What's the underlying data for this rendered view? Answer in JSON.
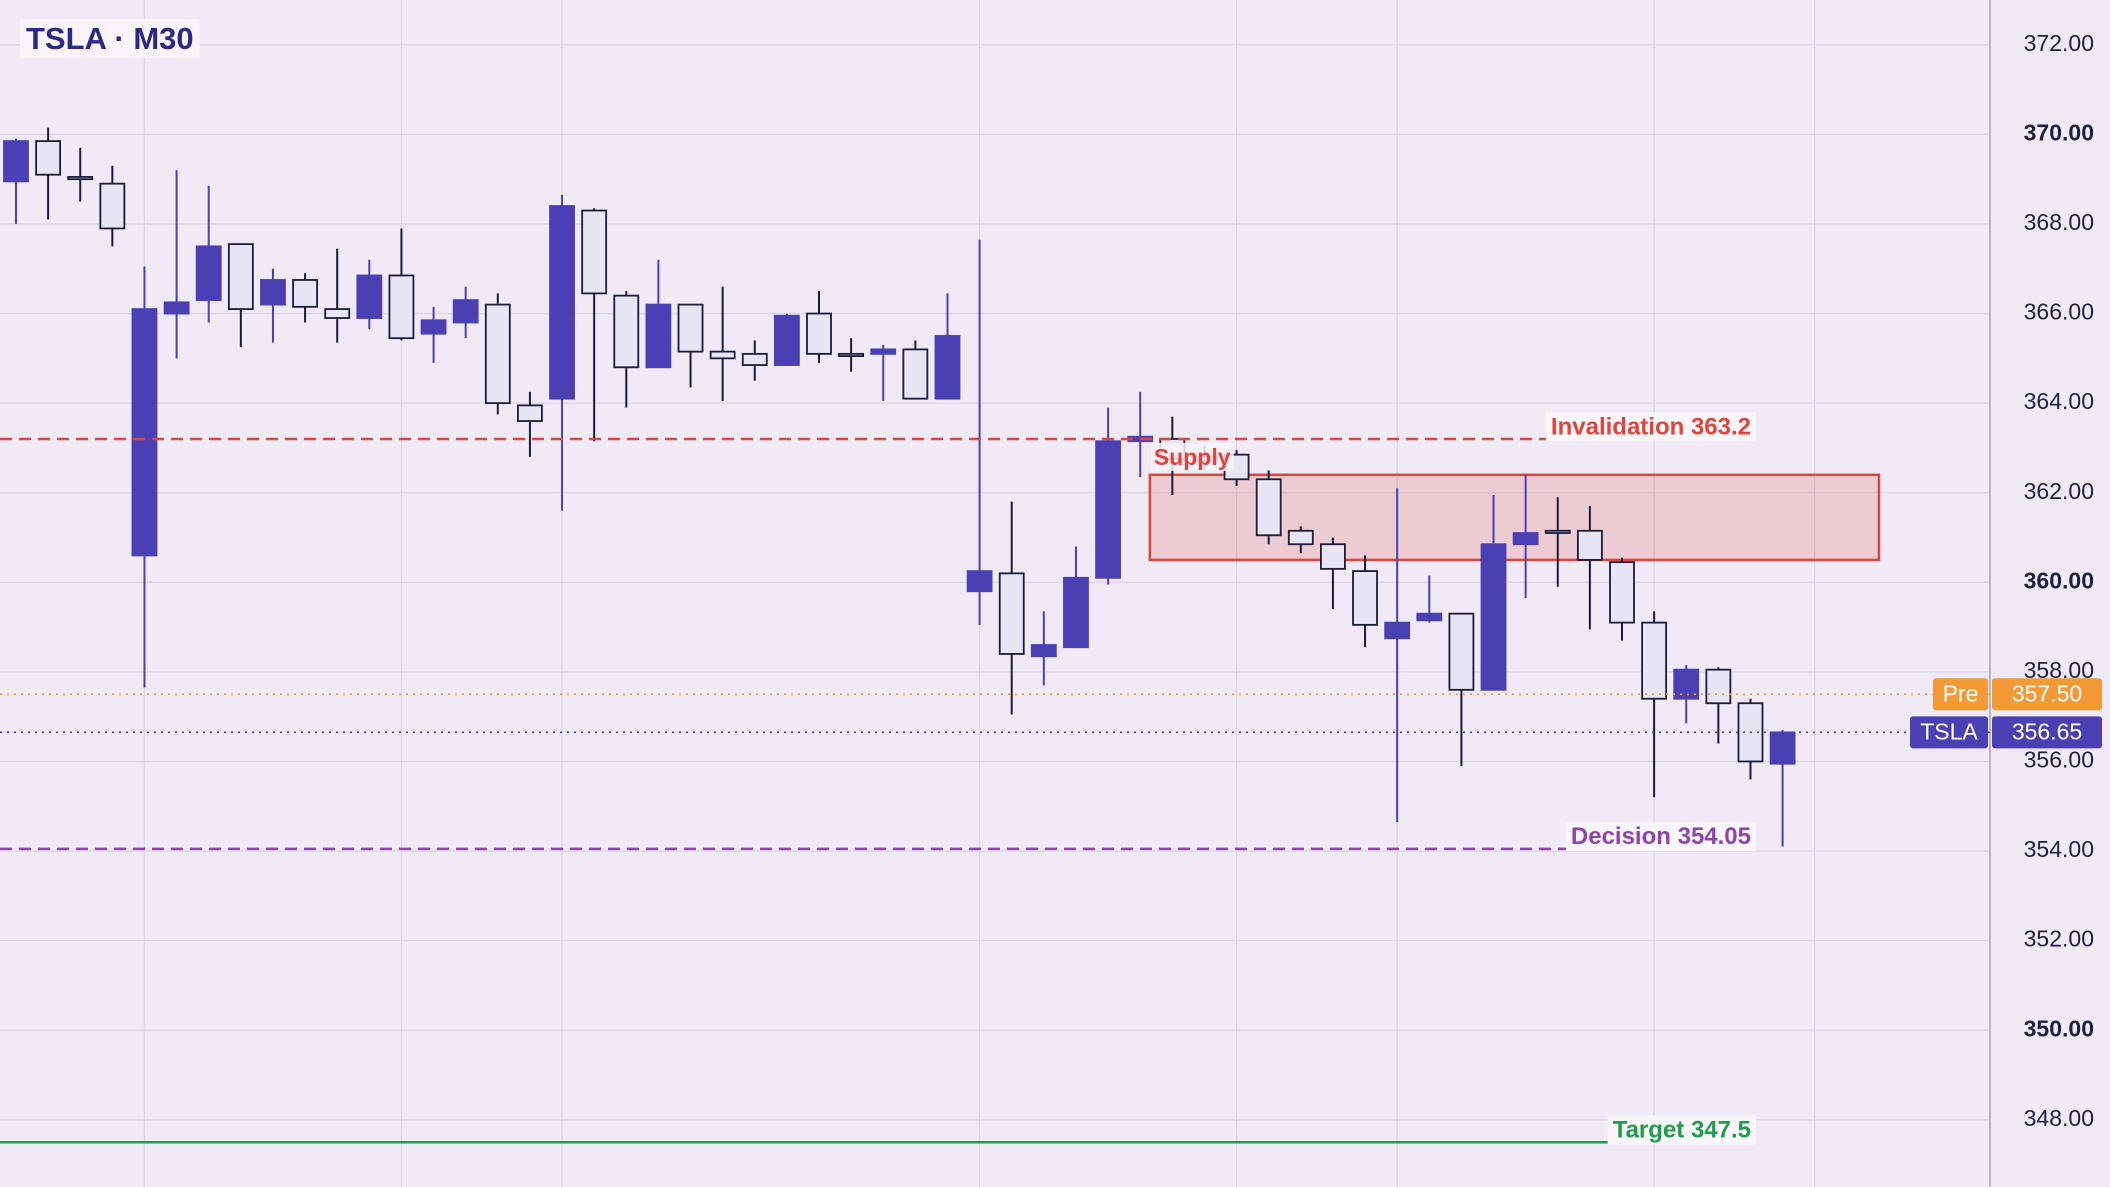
{
  "chart_data": {
    "type": "candlestick",
    "title": "TSLA · M30",
    "open": [
      368.95,
      369.85,
      369.05,
      368.9,
      360.6,
      366.0,
      366.3,
      367.55,
      366.2,
      366.75,
      366.1,
      365.9,
      366.85,
      365.55,
      365.8,
      366.2,
      363.95,
      364.1,
      368.3,
      366.4,
      364.8,
      366.2,
      365.15,
      365.1,
      364.85,
      366.0,
      365.1,
      365.1,
      365.2,
      364.1,
      359.8,
      360.2,
      358.35,
      358.55,
      360.1,
      363.15,
      363.2,
      362.8,
      362.85,
      362.3,
      361.15,
      360.85,
      360.25,
      358.75,
      359.15,
      359.3,
      357.6,
      360.85,
      361.15,
      361.15,
      360.45,
      359.1,
      357.4,
      358.05,
      357.3,
      355.95
    ],
    "high": [
      369.9,
      370.15,
      369.7,
      369.3,
      367.05,
      369.2,
      368.85,
      367.55,
      367.0,
      366.9,
      367.45,
      367.2,
      367.9,
      366.15,
      366.6,
      366.45,
      364.25,
      368.65,
      368.35,
      366.5,
      367.2,
      366.2,
      366.6,
      365.4,
      366.0,
      366.5,
      365.45,
      365.3,
      365.4,
      366.45,
      367.65,
      361.8,
      359.35,
      360.8,
      363.9,
      364.25,
      363.7,
      363.05,
      362.95,
      362.5,
      361.25,
      361.0,
      360.6,
      362.1,
      360.15,
      359.3,
      361.95,
      362.4,
      361.9,
      361.7,
      360.55,
      359.35,
      358.15,
      358.1,
      357.4,
      356.7
    ],
    "low": [
      368.0,
      368.1,
      368.5,
      367.5,
      357.65,
      365.0,
      365.8,
      365.25,
      365.35,
      365.8,
      365.35,
      365.65,
      365.4,
      364.9,
      365.45,
      363.75,
      362.8,
      361.6,
      363.15,
      363.9,
      364.8,
      364.35,
      364.05,
      364.5,
      364.85,
      364.9,
      364.7,
      364.05,
      364.1,
      364.1,
      359.05,
      357.05,
      357.7,
      358.55,
      359.95,
      362.35,
      361.95,
      362.5,
      362.15,
      360.85,
      360.65,
      359.4,
      358.55,
      354.65,
      359.1,
      355.9,
      357.6,
      359.65,
      359.9,
      358.95,
      358.7,
      355.2,
      356.85,
      356.4,
      355.6,
      354.1
    ],
    "close": [
      369.85,
      369.1,
      369.0,
      367.9,
      366.1,
      366.25,
      367.5,
      366.1,
      366.75,
      366.15,
      365.9,
      366.85,
      365.45,
      365.85,
      366.3,
      364.0,
      363.6,
      368.4,
      366.45,
      364.8,
      366.2,
      365.15,
      365.0,
      364.85,
      365.95,
      365.1,
      365.05,
      365.2,
      364.1,
      365.5,
      360.25,
      358.4,
      358.6,
      360.1,
      363.15,
      363.25,
      362.75,
      362.7,
      362.3,
      361.05,
      360.85,
      360.3,
      359.05,
      359.1,
      359.3,
      357.6,
      360.85,
      361.1,
      361.1,
      360.5,
      359.1,
      357.4,
      358.05,
      357.3,
      356.0,
      356.65
    ],
    "up_color": "#4a3fb3",
    "down_color": "#e7e4f4",
    "ylim": [
      346.5,
      373.0
    ],
    "yticks": [
      {
        "value": 348,
        "label": "348.00"
      },
      {
        "value": 350,
        "label": "350.00"
      },
      {
        "value": 352,
        "label": "352.00"
      },
      {
        "value": 354,
        "label": "354.00"
      },
      {
        "value": 356,
        "label": "356.00"
      },
      {
        "value": 358,
        "label": "358.00"
      },
      {
        "value": 360,
        "label": "360.00"
      },
      {
        "value": 362,
        "label": "362.00"
      },
      {
        "value": 364,
        "label": "364.00"
      },
      {
        "value": 366,
        "label": "366.00"
      },
      {
        "value": 368,
        "label": "368.00"
      },
      {
        "value": 370,
        "label": "370.00"
      },
      {
        "value": 372,
        "label": "372.00"
      }
    ],
    "grid": true,
    "levels": [
      {
        "label": "Invalidation 363.2",
        "value": 363.2,
        "color": "#e0443a",
        "style": "dashed"
      },
      {
        "label": "Decision 354.05",
        "value": 354.05,
        "color": "#8e44ad",
        "style": "dashed"
      },
      {
        "label": "Target 347.5",
        "value": 347.5,
        "color": "#1e9e4a",
        "style": "solid"
      }
    ],
    "zone": {
      "label": "Supply",
      "top": 362.4,
      "bottom": 360.5,
      "color": "#e0443a"
    },
    "price_tags": [
      {
        "name": "Pre",
        "value": 357.5,
        "value_label": "357.50",
        "color": "#f39a36"
      },
      {
        "name": "TSLA",
        "value": 356.65,
        "value_label": "356.65",
        "color": "#4a3fb3"
      }
    ]
  }
}
